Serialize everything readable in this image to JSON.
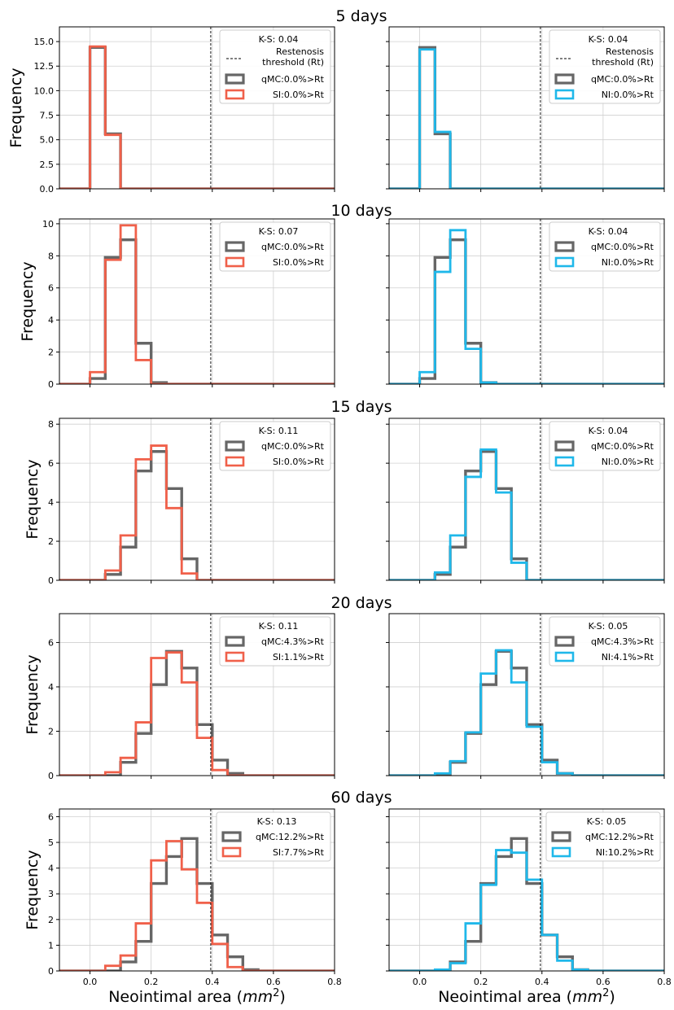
{
  "figure": {
    "xlabel": "Neointimal area (mm²)",
    "ylabel": "Frequency",
    "colors": {
      "qmc": "#666666",
      "si": "#f0604a",
      "ni": "#1fb8ea",
      "threshold": "#000000"
    }
  },
  "chart_data": [
    {
      "type": "histogram",
      "row": 0,
      "col": 0,
      "panel_title": "5 days",
      "xlim": [
        -0.1,
        0.8
      ],
      "ylim": [
        0,
        16.5
      ],
      "yticks": [
        0.0,
        2.5,
        5.0,
        7.5,
        10.0,
        12.5,
        15.0
      ],
      "ytick_labels": [
        "0.0",
        "2.5",
        "5.0",
        "7.5",
        "10.0",
        "12.5",
        "15.0"
      ],
      "xticks": [
        0.0,
        0.2,
        0.4,
        0.6,
        0.8
      ],
      "ytick_label_visible": true,
      "xtick_label_visible": false,
      "bin_edges": [
        0.0,
        0.05,
        0.1
      ],
      "threshold": 0.395,
      "ks_label": "K-S: 0.04",
      "threshold_legend": [
        "Restenosis",
        "threshold (Rt)"
      ],
      "series": [
        {
          "name": "qMC:0.0%>Rt",
          "color_key": "qmc",
          "values": [
            14.4,
            5.6
          ]
        },
        {
          "name": "SI:0.0%>Rt",
          "color_key": "si",
          "values": [
            14.5,
            5.5
          ]
        }
      ]
    },
    {
      "type": "histogram",
      "row": 0,
      "col": 1,
      "panel_title": "",
      "xlim": [
        -0.1,
        0.8
      ],
      "ylim": [
        0,
        16.5
      ],
      "yticks": [
        0.0,
        2.5,
        5.0,
        7.5,
        10.0,
        12.5,
        15.0
      ],
      "ytick_labels": [
        "0.0",
        "2.5",
        "5.0",
        "7.5",
        "10.0",
        "12.5",
        "15.0"
      ],
      "xticks": [
        0.0,
        0.2,
        0.4,
        0.6,
        0.8
      ],
      "ytick_label_visible": false,
      "xtick_label_visible": false,
      "bin_edges": [
        0.0,
        0.05,
        0.1
      ],
      "threshold": 0.395,
      "ks_label": "K-S: 0.04",
      "threshold_legend": [
        "Restenosis",
        "threshold (Rt)"
      ],
      "series": [
        {
          "name": "qMC:0.0%>Rt",
          "color_key": "qmc",
          "values": [
            14.4,
            5.6
          ]
        },
        {
          "name": "NI:0.0%>Rt",
          "color_key": "ni",
          "values": [
            14.2,
            5.8
          ]
        }
      ]
    },
    {
      "type": "histogram",
      "row": 1,
      "col": 0,
      "panel_title": "10 days",
      "xlim": [
        -0.1,
        0.8
      ],
      "ylim": [
        0,
        10.3
      ],
      "yticks": [
        0,
        2,
        4,
        6,
        8,
        10
      ],
      "ytick_labels": [
        "0",
        "2",
        "4",
        "6",
        "8",
        "10"
      ],
      "xticks": [
        0.0,
        0.2,
        0.4,
        0.6,
        0.8
      ],
      "ytick_label_visible": true,
      "xtick_label_visible": false,
      "bin_edges": [
        0.0,
        0.05,
        0.1,
        0.15,
        0.2,
        0.25
      ],
      "threshold": 0.395,
      "ks_label": "K-S: 0.07",
      "threshold_legend": null,
      "series": [
        {
          "name": "qMC:0.0%>Rt",
          "color_key": "qmc",
          "values": [
            0.35,
            7.9,
            9.0,
            2.55,
            0.1
          ]
        },
        {
          "name": "SI:0.0%>Rt",
          "color_key": "si",
          "values": [
            0.75,
            7.75,
            9.9,
            1.5,
            0.0
          ]
        }
      ]
    },
    {
      "type": "histogram",
      "row": 1,
      "col": 1,
      "panel_title": "",
      "xlim": [
        -0.1,
        0.8
      ],
      "ylim": [
        0,
        10.3
      ],
      "yticks": [
        0,
        2,
        4,
        6,
        8,
        10
      ],
      "ytick_labels": [
        "0",
        "2",
        "4",
        "6",
        "8",
        "10"
      ],
      "xticks": [
        0.0,
        0.2,
        0.4,
        0.6,
        0.8
      ],
      "ytick_label_visible": false,
      "xtick_label_visible": false,
      "bin_edges": [
        0.0,
        0.05,
        0.1,
        0.15,
        0.2,
        0.25
      ],
      "threshold": 0.395,
      "ks_label": "K-S: 0.04",
      "threshold_legend": null,
      "series": [
        {
          "name": "qMC:0.0%>Rt",
          "color_key": "qmc",
          "values": [
            0.35,
            7.9,
            9.0,
            2.55,
            0.1
          ]
        },
        {
          "name": "NI:0.0%>Rt",
          "color_key": "ni",
          "values": [
            0.75,
            7.0,
            9.6,
            2.2,
            0.1
          ]
        }
      ]
    },
    {
      "type": "histogram",
      "row": 2,
      "col": 0,
      "panel_title": "15 days",
      "xlim": [
        -0.1,
        0.8
      ],
      "ylim": [
        0,
        8.3
      ],
      "yticks": [
        0,
        2,
        4,
        6,
        8
      ],
      "ytick_labels": [
        "0",
        "2",
        "4",
        "6",
        "8"
      ],
      "xticks": [
        0.0,
        0.2,
        0.4,
        0.6,
        0.8
      ],
      "ytick_label_visible": true,
      "xtick_label_visible": false,
      "bin_edges": [
        0.0,
        0.05,
        0.1,
        0.15,
        0.2,
        0.25,
        0.3,
        0.35,
        0.4
      ],
      "threshold": 0.395,
      "ks_label": "K-S: 0.11",
      "threshold_legend": null,
      "series": [
        {
          "name": "qMC:0.0%>Rt",
          "color_key": "qmc",
          "values": [
            0.0,
            0.3,
            1.7,
            5.6,
            6.6,
            4.7,
            1.1,
            0.0
          ]
        },
        {
          "name": "SI:0.0%>Rt",
          "color_key": "si",
          "values": [
            0.0,
            0.5,
            2.3,
            6.2,
            6.9,
            3.7,
            0.35,
            0.0
          ]
        }
      ]
    },
    {
      "type": "histogram",
      "row": 2,
      "col": 1,
      "panel_title": "",
      "xlim": [
        -0.1,
        0.8
      ],
      "ylim": [
        0,
        8.3
      ],
      "yticks": [
        0,
        2,
        4,
        6,
        8
      ],
      "ytick_labels": [
        "0",
        "2",
        "4",
        "6",
        "8"
      ],
      "xticks": [
        0.0,
        0.2,
        0.4,
        0.6,
        0.8
      ],
      "ytick_label_visible": false,
      "xtick_label_visible": false,
      "bin_edges": [
        0.0,
        0.05,
        0.1,
        0.15,
        0.2,
        0.25,
        0.3,
        0.35,
        0.4
      ],
      "threshold": 0.395,
      "ks_label": "K-S: 0.04",
      "threshold_legend": null,
      "series": [
        {
          "name": "qMC:0.0%>Rt",
          "color_key": "qmc",
          "values": [
            0.0,
            0.3,
            1.7,
            5.6,
            6.6,
            4.7,
            1.1,
            0.0
          ]
        },
        {
          "name": "NI:0.0%>Rt",
          "color_key": "ni",
          "values": [
            0.0,
            0.4,
            2.3,
            5.3,
            6.7,
            4.5,
            0.9,
            0.0
          ]
        }
      ]
    },
    {
      "type": "histogram",
      "row": 3,
      "col": 0,
      "panel_title": "20 days",
      "xlim": [
        -0.1,
        0.8
      ],
      "ylim": [
        0,
        7.3
      ],
      "yticks": [
        0,
        2,
        4,
        6
      ],
      "ytick_labels": [
        "0",
        "2",
        "4",
        "6"
      ],
      "xticks": [
        0.0,
        0.2,
        0.4,
        0.6,
        0.8
      ],
      "ytick_label_visible": true,
      "xtick_label_visible": false,
      "bin_edges": [
        0.0,
        0.05,
        0.1,
        0.15,
        0.2,
        0.25,
        0.3,
        0.35,
        0.4,
        0.45,
        0.5
      ],
      "threshold": 0.395,
      "ks_label": "K-S: 0.11",
      "threshold_legend": null,
      "series": [
        {
          "name": "qMC:4.3%>Rt",
          "color_key": "qmc",
          "values": [
            0.0,
            0.0,
            0.6,
            1.9,
            4.1,
            5.6,
            4.85,
            2.3,
            0.7,
            0.1
          ]
        },
        {
          "name": "SI:1.1%>Rt",
          "color_key": "si",
          "values": [
            0.0,
            0.15,
            0.8,
            2.4,
            5.3,
            5.55,
            4.2,
            1.7,
            0.25,
            0.0
          ]
        }
      ]
    },
    {
      "type": "histogram",
      "row": 3,
      "col": 1,
      "panel_title": "",
      "xlim": [
        -0.1,
        0.8
      ],
      "ylim": [
        0,
        7.3
      ],
      "yticks": [
        0,
        2,
        4,
        6
      ],
      "ytick_labels": [
        "0",
        "2",
        "4",
        "6"
      ],
      "xticks": [
        0.0,
        0.2,
        0.4,
        0.6,
        0.8
      ],
      "ytick_label_visible": false,
      "xtick_label_visible": false,
      "bin_edges": [
        0.0,
        0.05,
        0.1,
        0.15,
        0.2,
        0.25,
        0.3,
        0.35,
        0.4,
        0.45,
        0.5
      ],
      "threshold": 0.395,
      "ks_label": "K-S: 0.05",
      "threshold_legend": null,
      "series": [
        {
          "name": "qMC:4.3%>Rt",
          "color_key": "qmc",
          "values": [
            0.0,
            0.0,
            0.6,
            1.9,
            4.1,
            5.6,
            4.85,
            2.3,
            0.7,
            0.1
          ]
        },
        {
          "name": "NI:4.1%>Rt",
          "color_key": "ni",
          "values": [
            0.0,
            0.1,
            0.65,
            1.95,
            4.6,
            5.65,
            4.2,
            2.2,
            0.6,
            0.1
          ]
        }
      ]
    },
    {
      "type": "histogram",
      "row": 4,
      "col": 0,
      "panel_title": "60 days",
      "xlim": [
        -0.1,
        0.8
      ],
      "ylim": [
        0,
        6.3
      ],
      "yticks": [
        0,
        1,
        2,
        3,
        4,
        5,
        6
      ],
      "ytick_labels": [
        "0",
        "1",
        "2",
        "3",
        "4",
        "5",
        "6"
      ],
      "xticks": [
        0.0,
        0.2,
        0.4,
        0.6,
        0.8
      ],
      "xtick_labels": [
        "0.0",
        "0.2",
        "0.4",
        "0.6",
        "0.8"
      ],
      "ytick_label_visible": true,
      "xtick_label_visible": true,
      "bin_edges": [
        0.0,
        0.05,
        0.1,
        0.15,
        0.2,
        0.25,
        0.3,
        0.35,
        0.4,
        0.45,
        0.5,
        0.55
      ],
      "threshold": 0.395,
      "ks_label": "K-S: 0.13",
      "threshold_legend": null,
      "series": [
        {
          "name": "qMC:12.2%>Rt",
          "color_key": "qmc",
          "values": [
            0.0,
            0.0,
            0.35,
            1.15,
            3.4,
            4.45,
            5.15,
            3.4,
            1.4,
            0.55,
            0.05
          ]
        },
        {
          "name": "SI:7.7%>Rt",
          "color_key": "si",
          "values": [
            0.0,
            0.2,
            0.6,
            1.85,
            4.3,
            5.05,
            3.95,
            2.65,
            1.05,
            0.15,
            0.0
          ]
        }
      ]
    },
    {
      "type": "histogram",
      "row": 4,
      "col": 1,
      "panel_title": "",
      "xlim": [
        -0.1,
        0.8
      ],
      "ylim": [
        0,
        6.3
      ],
      "yticks": [
        0,
        1,
        2,
        3,
        4,
        5,
        6
      ],
      "ytick_labels": [
        "0",
        "1",
        "2",
        "3",
        "4",
        "5",
        "6"
      ],
      "xticks": [
        0.0,
        0.2,
        0.4,
        0.6,
        0.8
      ],
      "xtick_labels": [
        "0.0",
        "0.2",
        "0.4",
        "0.6",
        "0.8"
      ],
      "ytick_label_visible": false,
      "xtick_label_visible": true,
      "bin_edges": [
        0.0,
        0.05,
        0.1,
        0.15,
        0.2,
        0.25,
        0.3,
        0.35,
        0.4,
        0.45,
        0.5,
        0.55
      ],
      "threshold": 0.395,
      "ks_label": "K-S: 0.05",
      "threshold_legend": null,
      "series": [
        {
          "name": "qMC:12.2%>Rt",
          "color_key": "qmc",
          "values": [
            0.0,
            0.0,
            0.35,
            1.15,
            3.4,
            4.45,
            5.15,
            3.4,
            1.4,
            0.55,
            0.05
          ]
        },
        {
          "name": "NI:10.2%>Rt",
          "color_key": "ni",
          "values": [
            0.0,
            0.05,
            0.3,
            1.85,
            3.35,
            4.7,
            4.6,
            3.55,
            1.4,
            0.4,
            0.05
          ]
        }
      ]
    }
  ]
}
